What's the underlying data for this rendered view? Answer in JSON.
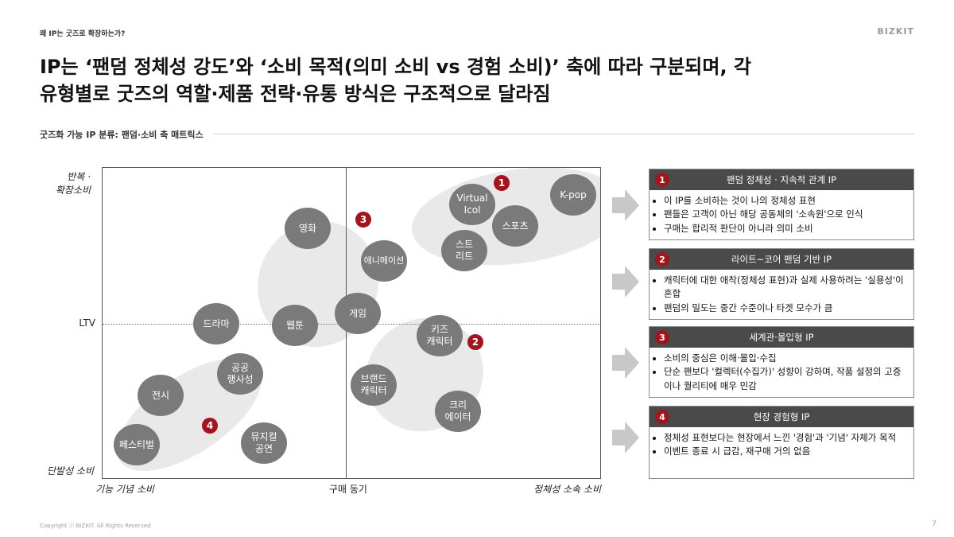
{
  "header": {
    "breadcrumb": "왜 IP는 굿즈로 확장하는가?",
    "brand": "BIZKIT",
    "headline_line1": "IP는 ‘팬덤 정체성 강도’와 ‘소비 목적(의미 소비 vs 경험 소비)’ 축에 따라 구분되며, 각",
    "headline_line2": "유형별로 굿즈의 역할·제품 전략·유통 방식은 구조적으로 달라짐",
    "subtitle": "굿즈화 가능 IP 분류: 팬덤·소비 축 매트릭스"
  },
  "matrix": {
    "y_top": "반복 ·\n확장소비",
    "y_mid": "LTV",
    "y_bottom": "단발성 소비",
    "x_left": "기능 기념 소비",
    "x_mid": "구매 동기",
    "x_right": "정체성 소속 소비",
    "bubbles": {
      "virtual_icol": "Virtual\nIcol",
      "kpop": "K-pop",
      "sports": "스포츠",
      "street": "스트\n리트",
      "movie": "영화",
      "animation": "애니메이션",
      "game": "게임",
      "drama": "드라마",
      "webtoon": "웹툰",
      "kids": "키즈\n캐릭터",
      "brand": "브랜드\n캐릭터",
      "creator": "크리\n에이터",
      "public_event": "공공\n행사성",
      "exhibition": "전시",
      "festival": "페스티벌",
      "musical": "뮤지컬\n공연"
    },
    "markers": {
      "m1": "1",
      "m2": "2",
      "m3": "3",
      "m4": "4"
    }
  },
  "panels": [
    {
      "num": "1",
      "title": "팬덤 정체성 · 지속적 관계 IP",
      "bullets": [
        "이 IP를 소비하는 것이 나의 정체성 표현",
        "팬들은 고객이 아닌 해당 공동체의 '소속원'으로 인식",
        "구매는 합리적 판단이 아니라 의미 소비"
      ]
    },
    {
      "num": "2",
      "title": "라이트~코어 팬덤 기반 IP",
      "bullets": [
        "캐릭터에 대한 애착(정체성 표현)과 실제 사용하려는 '실용성'이 혼합",
        "팬덤의 밀도는 중간 수준이나 타겟 모수가 큼"
      ]
    },
    {
      "num": "3",
      "title": "세계관·몰입형 IP",
      "bullets": [
        "소비의 중심은 이해·몰입·수집",
        "단순 팬보다 '컬렉터(수집가)' 성향이 강하며, 작품 설정의 고증이나 퀄리티에 매우 민감"
      ]
    },
    {
      "num": "4",
      "title": "현장 경험형 IP",
      "bullets": [
        "정체성 표현보다는 현장에서 느낀 '경험'과 '기념' 자체가 목적",
        "이벤트 종료 시 급감, 재구매 거의 없음"
      ]
    }
  ],
  "footer": {
    "copyright": "Copyright ⓒ BIZKIT. All Rights Reserved",
    "page": "7"
  }
}
